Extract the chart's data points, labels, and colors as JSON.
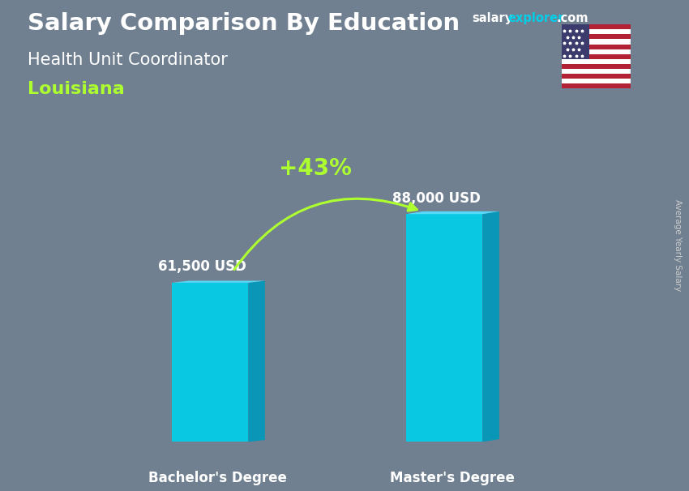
{
  "title_main": "Salary Comparison By Education",
  "subtitle": "Health Unit Coordinator",
  "location": "Louisiana",
  "categories": [
    "Bachelor's Degree",
    "Master's Degree"
  ],
  "values": [
    61500,
    88000
  ],
  "labels": [
    "61,500 USD",
    "88,000 USD"
  ],
  "pct_change": "+43%",
  "bar_color_face": "#00CFEA",
  "bar_color_side": "#0099BB",
  "bar_color_top": "#55DDFF",
  "bar_alpha": 0.92,
  "title_color": "#FFFFFF",
  "subtitle_color": "#FFFFFF",
  "location_color": "#ADFF2F",
  "pct_color": "#ADFF2F",
  "label_color": "#FFFFFF",
  "axis_label_color": "#FFFFFF",
  "side_text": "Average Yearly Salary",
  "side_text_color": "#CCCCCC",
  "background_color": "#708090",
  "ylim": [
    0,
    110000
  ],
  "bar_width": 0.13,
  "salary_color": "#FFFFFF",
  "explorer_color": "#00CFEA",
  "dotcom_color": "#FFFFFF"
}
